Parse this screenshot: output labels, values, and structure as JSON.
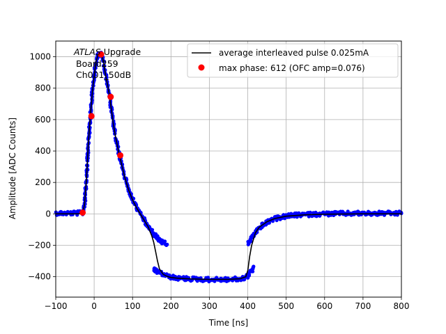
{
  "chart_data": {
    "type": "scatter",
    "title": "",
    "xlabel": "Time [ns]",
    "ylabel": "Amplitude [ADC Counts]",
    "xlim": [
      -100,
      800
    ],
    "ylim": [
      -530,
      1100
    ],
    "xticks": [
      -100,
      0,
      100,
      200,
      300,
      400,
      500,
      600,
      700,
      800
    ],
    "yticks": [
      -400,
      -200,
      0,
      200,
      400,
      600,
      800,
      1000
    ],
    "grid": true,
    "legend_position": "top-right",
    "annotation": {
      "italic": "ATLAS",
      "line1_rest": " Upgrade",
      "line2": "Board259",
      "line3": "Ch001_50dB"
    },
    "series": [
      {
        "name": "",
        "kind": "scatter",
        "color": "#0000ff",
        "x": [
          -100,
          -70,
          -40,
          -30,
          -25,
          -20,
          -15,
          -10,
          -5,
          0,
          5,
          10,
          15,
          20,
          25,
          30,
          35,
          40,
          45,
          50,
          55,
          60,
          65,
          70,
          75,
          80,
          90,
          100,
          110,
          120,
          130,
          140,
          150,
          160,
          170,
          180,
          190
        ],
        "y": [
          5,
          5,
          5,
          6,
          60,
          220,
          450,
          620,
          770,
          880,
          970,
          1010,
          1020,
          1010,
          960,
          880,
          820,
          750,
          660,
          570,
          500,
          440,
          380,
          330,
          280,
          230,
          150,
          90,
          40,
          0,
          -40,
          -80,
          -110,
          -140,
          -170,
          -185,
          -195
        ]
      },
      {
        "name": "",
        "kind": "scatter",
        "color": "#0000ff",
        "x": [
          155,
          160,
          170,
          180,
          190,
          200,
          210,
          220,
          240,
          260,
          280,
          300,
          320,
          340,
          360,
          380,
          390,
          400,
          410,
          415
        ],
        "y": [
          -350,
          -360,
          -375,
          -385,
          -395,
          -402,
          -408,
          -410,
          -413,
          -415,
          -417,
          -418,
          -418,
          -418,
          -417,
          -415,
          -410,
          -395,
          -360,
          -335
        ]
      },
      {
        "name": "",
        "kind": "scatter",
        "color": "#0000ff",
        "x": [
          400,
          405,
          410,
          420,
          430,
          440,
          450,
          460,
          470,
          480,
          490,
          500,
          520,
          540,
          560,
          580,
          600,
          620,
          650,
          700,
          750,
          800
        ],
        "y": [
          -195,
          -175,
          -150,
          -115,
          -90,
          -70,
          -55,
          -42,
          -32,
          -25,
          -20,
          -15,
          -10,
          -6,
          -4,
          -2,
          0,
          1,
          2,
          3,
          3,
          3
        ]
      },
      {
        "name": "average interleaved pulse 0.025mA",
        "kind": "line",
        "color": "#000000",
        "x": [
          -100,
          -40,
          -30,
          -25,
          -20,
          -15,
          -10,
          -5,
          0,
          5,
          10,
          15,
          20,
          25,
          30,
          35,
          40,
          45,
          50,
          55,
          60,
          65,
          70,
          80,
          90,
          100,
          110,
          120,
          130,
          140,
          150,
          155,
          160,
          165,
          170,
          180,
          190,
          200,
          220,
          250,
          300,
          350,
          380,
          395,
          400,
          405,
          410,
          420,
          430,
          450,
          470,
          500,
          550,
          600,
          700,
          800
        ],
        "y": [
          0,
          0,
          2,
          60,
          220,
          450,
          620,
          770,
          880,
          970,
          1010,
          1020,
          1010,
          960,
          880,
          820,
          750,
          660,
          570,
          500,
          440,
          380,
          330,
          230,
          150,
          90,
          40,
          0,
          -40,
          -80,
          -140,
          -180,
          -240,
          -300,
          -350,
          -385,
          -398,
          -405,
          -410,
          -414,
          -417,
          -417,
          -413,
          -400,
          -360,
          -270,
          -200,
          -120,
          -85,
          -50,
          -30,
          -15,
          -6,
          -2,
          0,
          0
        ]
      },
      {
        "name": "max phase: 612 (OFC amp=0.076)",
        "kind": "markers",
        "color": "#ff0000",
        "x": [
          -30,
          -7,
          18,
          43,
          68
        ],
        "y": [
          8,
          622,
          1015,
          745,
          372
        ]
      }
    ]
  }
}
